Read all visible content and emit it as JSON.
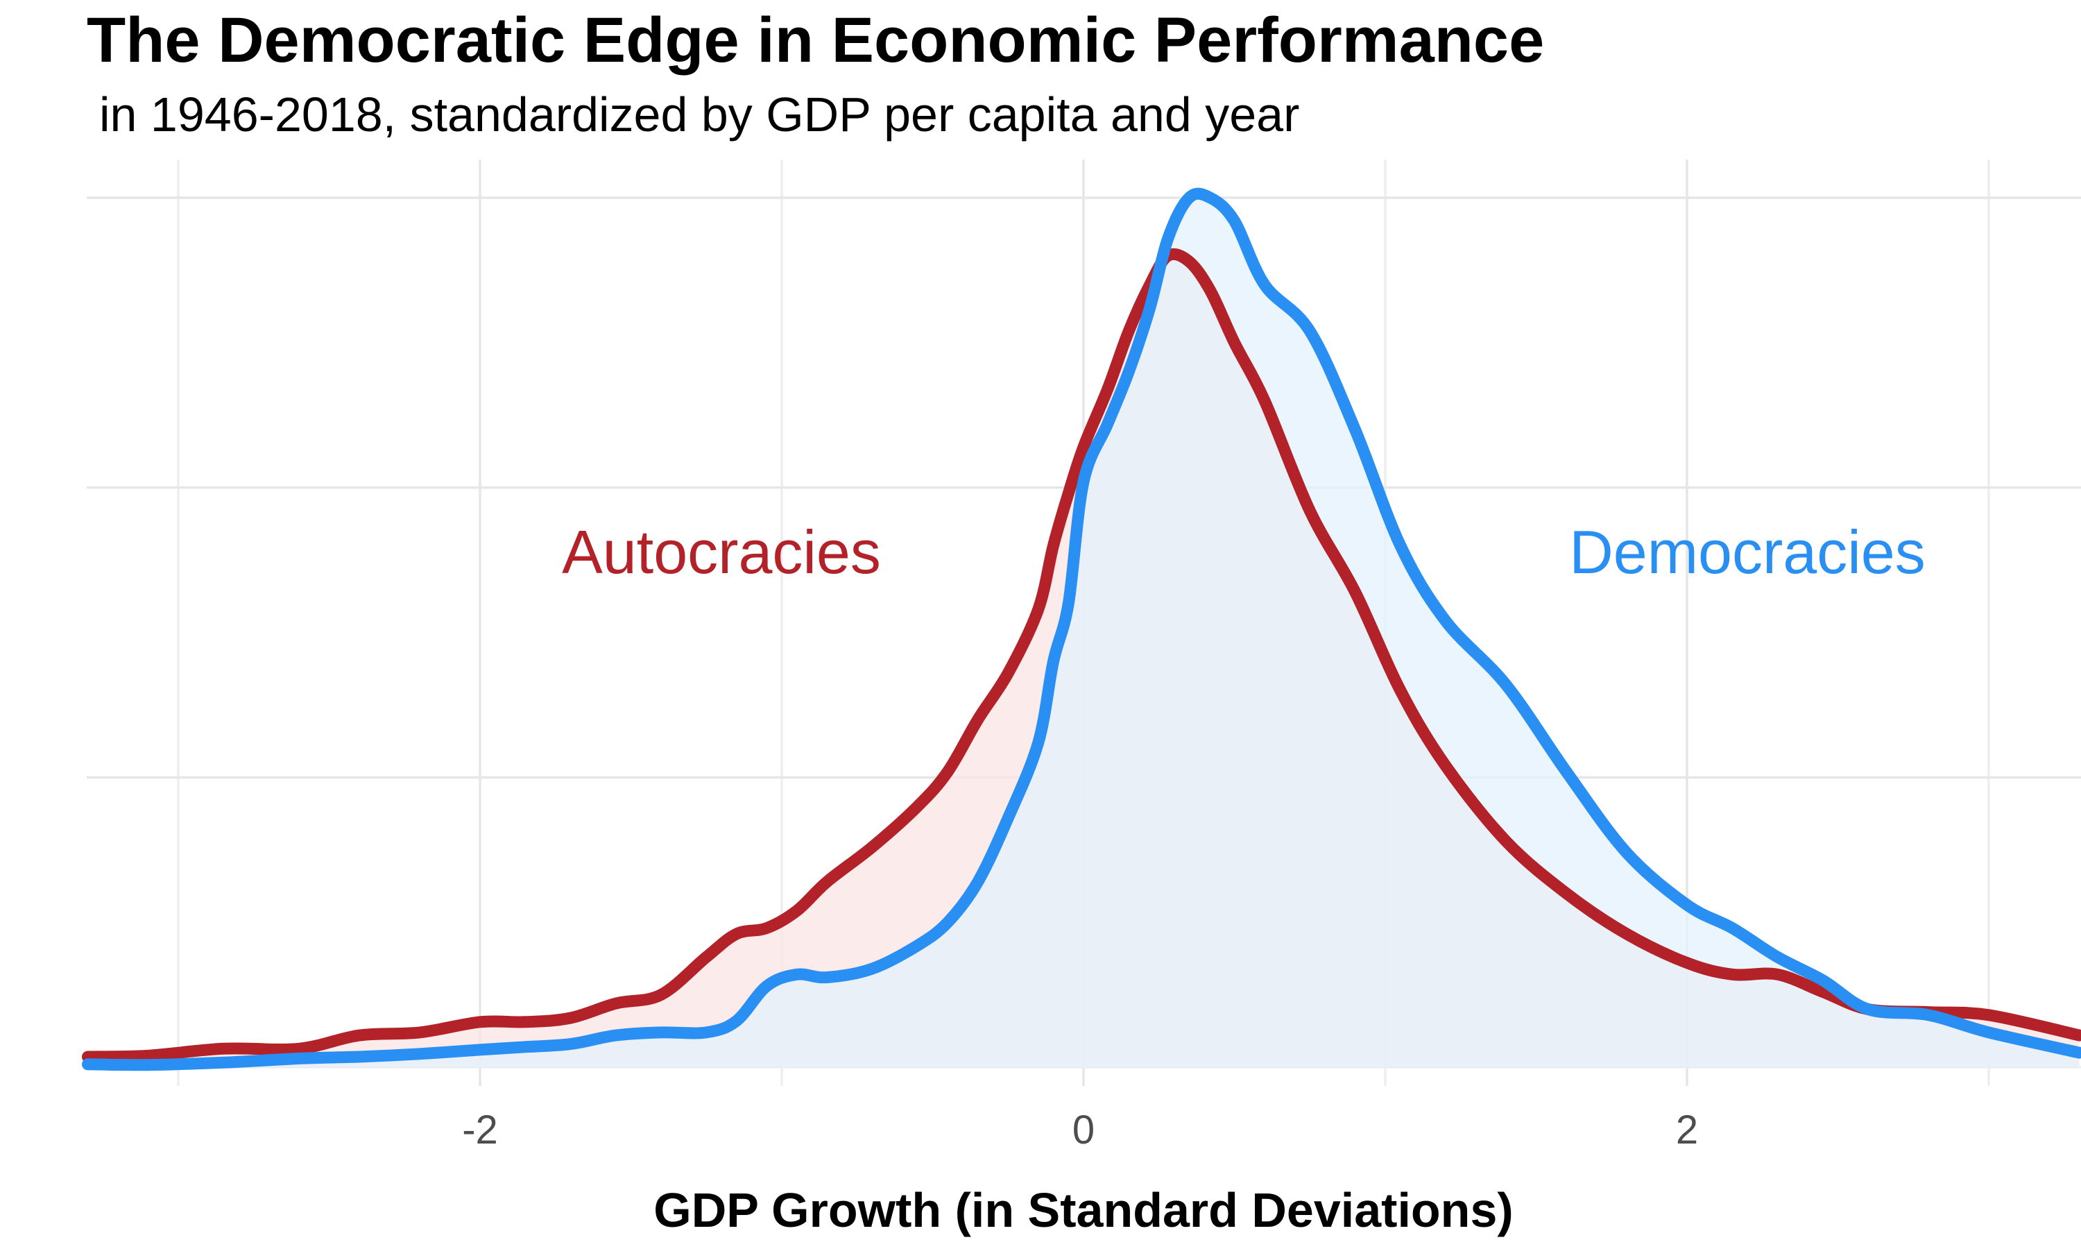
{
  "chart_data": {
    "type": "area",
    "title": "The Democratic Edge in Economic Performance",
    "subtitle": "in 1946-2018, standardized by GDP per capita and year",
    "xlabel": "GDP Growth (in Standard Deviations)",
    "ylabel": "",
    "xlim": [
      -3.3,
      3.3
    ],
    "ylim": [
      0,
      1.53
    ],
    "x_ticks": [
      -2,
      0,
      2
    ],
    "x_tick_labels": [
      "-2",
      "0",
      "2"
    ],
    "y_gridlines": [
      0.5,
      1.0,
      1.5
    ],
    "y_tick_labels_shown": false,
    "grid": true,
    "legend": "none (direct labels on plot)",
    "series": [
      {
        "name": "Autocracies",
        "color": "#b22228",
        "fill": "#f9e4e4",
        "label_position": [
          -1.2,
          0.88
        ],
        "x": [
          -3.3,
          -3.1,
          -2.85,
          -2.6,
          -2.4,
          -2.2,
          -2.0,
          -1.85,
          -1.7,
          -1.55,
          -1.4,
          -1.25,
          -1.15,
          -1.05,
          -0.95,
          -0.85,
          -0.7,
          -0.55,
          -0.45,
          -0.35,
          -0.25,
          -0.15,
          -0.1,
          -0.05,
          0.0,
          0.08,
          0.15,
          0.22,
          0.28,
          0.35,
          0.42,
          0.5,
          0.6,
          0.75,
          0.9,
          1.05,
          1.2,
          1.4,
          1.6,
          1.8,
          2.0,
          2.15,
          2.3,
          2.45,
          2.6,
          2.8,
          3.0,
          3.3
        ],
        "y": [
          0.018,
          0.02,
          0.032,
          0.032,
          0.055,
          0.06,
          0.078,
          0.078,
          0.085,
          0.11,
          0.125,
          0.19,
          0.23,
          0.24,
          0.27,
          0.32,
          0.38,
          0.45,
          0.51,
          0.6,
          0.68,
          0.79,
          0.9,
          0.99,
          1.07,
          1.17,
          1.27,
          1.35,
          1.4,
          1.39,
          1.34,
          1.25,
          1.15,
          0.96,
          0.82,
          0.65,
          0.52,
          0.39,
          0.3,
          0.23,
          0.18,
          0.16,
          0.16,
          0.13,
          0.1,
          0.095,
          0.09,
          0.055
        ]
      },
      {
        "name": "Democracies",
        "color": "#2a8ff2",
        "fill": "#e3f1fc",
        "label_position": [
          2.2,
          0.88
        ],
        "x": [
          -3.3,
          -3.1,
          -2.85,
          -2.6,
          -2.4,
          -2.2,
          -2.0,
          -1.85,
          -1.7,
          -1.55,
          -1.4,
          -1.25,
          -1.15,
          -1.05,
          -0.95,
          -0.85,
          -0.7,
          -0.55,
          -0.45,
          -0.35,
          -0.25,
          -0.15,
          -0.1,
          -0.05,
          0.0,
          0.08,
          0.15,
          0.22,
          0.28,
          0.35,
          0.42,
          0.5,
          0.6,
          0.75,
          0.9,
          1.05,
          1.2,
          1.4,
          1.6,
          1.8,
          2.0,
          2.15,
          2.3,
          2.45,
          2.6,
          2.8,
          3.0,
          3.3
        ],
        "y": [
          0.005,
          0.004,
          0.008,
          0.015,
          0.018,
          0.023,
          0.03,
          0.035,
          0.04,
          0.055,
          0.06,
          0.06,
          0.08,
          0.14,
          0.16,
          0.155,
          0.17,
          0.21,
          0.25,
          0.32,
          0.43,
          0.56,
          0.7,
          0.8,
          1.01,
          1.11,
          1.2,
          1.31,
          1.43,
          1.5,
          1.5,
          1.46,
          1.35,
          1.27,
          1.1,
          0.9,
          0.77,
          0.66,
          0.51,
          0.37,
          0.28,
          0.24,
          0.19,
          0.15,
          0.1,
          0.09,
          0.06,
          0.025
        ]
      }
    ]
  }
}
